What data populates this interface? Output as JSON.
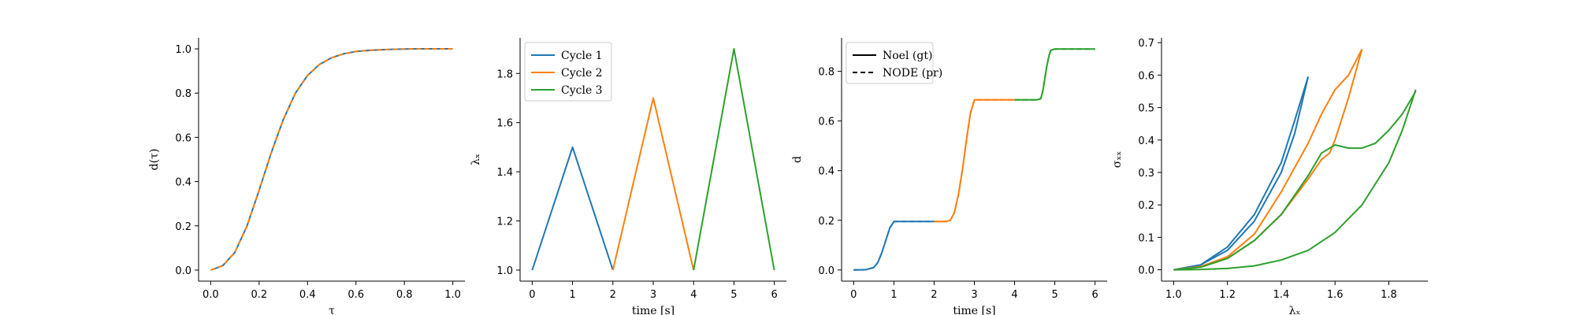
{
  "colors": {
    "blue": "#1f77b4",
    "orange": "#ff7f0e",
    "green": "#2ca02c",
    "black": "#000000"
  },
  "chart_data": [
    {
      "type": "line",
      "xlabel": "τ",
      "ylabel": "d(τ)",
      "xlim": [
        -0.05,
        1.05
      ],
      "ylim": [
        -0.05,
        1.05
      ],
      "xticks": [
        0.0,
        0.2,
        0.4,
        0.6,
        0.8,
        1.0
      ],
      "xtick_labels": [
        "0.0",
        "0.2",
        "0.4",
        "0.6",
        "0.8",
        "1.0"
      ],
      "yticks": [
        0.0,
        0.2,
        0.4,
        0.6,
        0.8,
        1.0
      ],
      "ytick_labels": [
        "0.0",
        "0.2",
        "0.4",
        "0.6",
        "0.8",
        "1.0"
      ],
      "grid": false,
      "series": [
        {
          "color": "blue",
          "dash": "solid",
          "x": [
            0.0,
            0.05,
            0.1,
            0.15,
            0.2,
            0.25,
            0.3,
            0.35,
            0.4,
            0.45,
            0.5,
            0.55,
            0.6,
            0.65,
            0.7,
            0.75,
            0.8,
            0.85,
            0.9,
            0.95,
            1.0
          ],
          "y": [
            0.0,
            0.02,
            0.08,
            0.2,
            0.36,
            0.53,
            0.68,
            0.8,
            0.88,
            0.93,
            0.96,
            0.978,
            0.988,
            0.993,
            0.996,
            0.998,
            0.999,
            1.0,
            1.0,
            1.0,
            1.0
          ]
        },
        {
          "color": "orange",
          "dash": "dashed",
          "x": [
            0.0,
            0.05,
            0.1,
            0.15,
            0.2,
            0.25,
            0.3,
            0.35,
            0.4,
            0.45,
            0.5,
            0.55,
            0.6,
            0.65,
            0.7,
            0.75,
            0.8,
            0.85,
            0.9,
            0.95,
            1.0
          ],
          "y": [
            0.0,
            0.02,
            0.08,
            0.2,
            0.36,
            0.53,
            0.68,
            0.8,
            0.88,
            0.93,
            0.96,
            0.978,
            0.988,
            0.993,
            0.996,
            0.998,
            0.999,
            1.0,
            1.0,
            1.0,
            1.0
          ]
        }
      ]
    },
    {
      "type": "line",
      "xlabel": "time [s]",
      "ylabel": "λₓ",
      "xlim": [
        -0.3,
        6.3
      ],
      "ylim": [
        0.955,
        1.945
      ],
      "xticks": [
        0,
        1,
        2,
        3,
        4,
        5,
        6
      ],
      "xtick_labels": [
        "0",
        "1",
        "2",
        "3",
        "4",
        "5",
        "6"
      ],
      "yticks": [
        1.0,
        1.2,
        1.4,
        1.6,
        1.8
      ],
      "ytick_labels": [
        "1.0",
        "1.2",
        "1.4",
        "1.6",
        "1.8"
      ],
      "grid": false,
      "legend": {
        "placement": "upper-left",
        "entries": [
          {
            "label": "Cycle 1",
            "color": "blue",
            "dash": "solid"
          },
          {
            "label": "Cycle 2",
            "color": "orange",
            "dash": "solid"
          },
          {
            "label": "Cycle 3",
            "color": "green",
            "dash": "solid"
          }
        ]
      },
      "series": [
        {
          "name": "Cycle 1",
          "color": "blue",
          "dash": "solid",
          "x": [
            0,
            1,
            2
          ],
          "y": [
            1.0,
            1.5,
            1.0
          ]
        },
        {
          "name": "Cycle 2",
          "color": "orange",
          "dash": "solid",
          "x": [
            2,
            3,
            4
          ],
          "y": [
            1.0,
            1.7,
            1.0
          ]
        },
        {
          "name": "Cycle 3",
          "color": "green",
          "dash": "solid",
          "x": [
            4,
            5,
            6
          ],
          "y": [
            1.0,
            1.9,
            1.0
          ]
        }
      ]
    },
    {
      "type": "line",
      "xlabel": "time [s]",
      "ylabel": "d",
      "xlim": [
        -0.3,
        6.3
      ],
      "ylim": [
        -0.045,
        0.935
      ],
      "xticks": [
        0,
        1,
        2,
        3,
        4,
        5,
        6
      ],
      "xtick_labels": [
        "0",
        "1",
        "2",
        "3",
        "4",
        "5",
        "6"
      ],
      "yticks": [
        0.0,
        0.2,
        0.4,
        0.6,
        0.8
      ],
      "ytick_labels": [
        "0.0",
        "0.2",
        "0.4",
        "0.6",
        "0.8"
      ],
      "grid": false,
      "legend": {
        "placement": "upper-left",
        "entries": [
          {
            "label": "Noel (gt)",
            "color": "black",
            "dash": "solid"
          },
          {
            "label": "NODE (pr)",
            "color": "black",
            "dash": "dashed"
          }
        ]
      },
      "series": [
        {
          "color": "blue",
          "dash": "solid",
          "x": [
            0,
            0.3,
            0.5,
            0.6,
            0.7,
            0.8,
            0.9,
            1.0,
            1.5,
            2.0
          ],
          "y": [
            0.0,
            0.001,
            0.01,
            0.03,
            0.07,
            0.12,
            0.17,
            0.195,
            0.195,
            0.195
          ]
        },
        {
          "color": "blue",
          "dash": "dashed",
          "x": [
            0,
            0.3,
            0.5,
            0.6,
            0.7,
            0.8,
            0.9,
            1.0,
            1.5,
            2.0
          ],
          "y": [
            0.0,
            0.001,
            0.01,
            0.03,
            0.07,
            0.12,
            0.17,
            0.195,
            0.195,
            0.195
          ]
        },
        {
          "color": "orange",
          "dash": "solid",
          "x": [
            2.0,
            2.3,
            2.4,
            2.5,
            2.6,
            2.7,
            2.8,
            2.9,
            3.0,
            3.5,
            4.0
          ],
          "y": [
            0.195,
            0.195,
            0.2,
            0.23,
            0.3,
            0.4,
            0.52,
            0.63,
            0.685,
            0.685,
            0.685
          ]
        },
        {
          "color": "orange",
          "dash": "dashed",
          "x": [
            2.0,
            2.3,
            2.4,
            2.5,
            2.6,
            2.7,
            2.8,
            2.9,
            3.0,
            3.5,
            4.0
          ],
          "y": [
            0.195,
            0.195,
            0.2,
            0.23,
            0.3,
            0.4,
            0.52,
            0.63,
            0.685,
            0.685,
            0.685
          ]
        },
        {
          "color": "green",
          "dash": "solid",
          "x": [
            4.0,
            4.55,
            4.65,
            4.7,
            4.75,
            4.8,
            4.85,
            4.9,
            5.0,
            5.5,
            6.0
          ],
          "y": [
            0.685,
            0.685,
            0.69,
            0.72,
            0.77,
            0.82,
            0.86,
            0.885,
            0.89,
            0.89,
            0.89
          ]
        },
        {
          "color": "green",
          "dash": "dashed",
          "x": [
            4.0,
            4.55,
            4.65,
            4.7,
            4.75,
            4.8,
            4.85,
            4.9,
            5.0,
            5.5,
            6.0
          ],
          "y": [
            0.685,
            0.685,
            0.69,
            0.72,
            0.77,
            0.82,
            0.86,
            0.885,
            0.89,
            0.89,
            0.89
          ]
        }
      ]
    },
    {
      "type": "line",
      "xlabel": "λₓ",
      "ylabel": "σₓₓ",
      "xlim": [
        0.955,
        1.945
      ],
      "ylim": [
        -0.035,
        0.715
      ],
      "xticks": [
        1.0,
        1.2,
        1.4,
        1.6,
        1.8
      ],
      "xtick_labels": [
        "1.0",
        "1.2",
        "1.4",
        "1.6",
        "1.8"
      ],
      "yticks": [
        0.0,
        0.1,
        0.2,
        0.3,
        0.4,
        0.5,
        0.6,
        0.7
      ],
      "ytick_labels": [
        "0.0",
        "0.1",
        "0.2",
        "0.3",
        "0.4",
        "0.5",
        "0.6",
        "0.7"
      ],
      "grid": false,
      "series": [
        {
          "color": "blue",
          "dash": "solid",
          "x": [
            1.0,
            1.1,
            1.2,
            1.3,
            1.4,
            1.45,
            1.5
          ],
          "y": [
            0.0,
            0.015,
            0.06,
            0.15,
            0.3,
            0.42,
            0.595
          ]
        },
        {
          "color": "blue",
          "dash": "solid",
          "x": [
            1.5,
            1.45,
            1.4,
            1.3,
            1.2,
            1.1,
            1.0
          ],
          "y": [
            0.595,
            0.46,
            0.33,
            0.17,
            0.07,
            0.015,
            0.0
          ]
        },
        {
          "color": "orange",
          "dash": "solid",
          "x": [
            1.0,
            1.1,
            1.2,
            1.3,
            1.4,
            1.5,
            1.55,
            1.6,
            1.65,
            1.7
          ],
          "y": [
            0.0,
            0.01,
            0.04,
            0.11,
            0.24,
            0.39,
            0.48,
            0.555,
            0.6,
            0.68
          ]
        },
        {
          "color": "orange",
          "dash": "solid",
          "x": [
            1.7,
            1.65,
            1.6,
            1.58,
            1.55,
            1.5,
            1.4,
            1.3,
            1.2,
            1.1,
            1.0
          ],
          "y": [
            0.68,
            0.53,
            0.4,
            0.36,
            0.34,
            0.28,
            0.17,
            0.09,
            0.035,
            0.008,
            0.0
          ]
        },
        {
          "color": "green",
          "dash": "solid",
          "x": [
            1.0,
            1.1,
            1.2,
            1.3,
            1.4,
            1.5,
            1.55,
            1.6,
            1.65,
            1.7,
            1.75,
            1.8,
            1.85,
            1.9
          ],
          "y": [
            0.0,
            0.008,
            0.035,
            0.09,
            0.17,
            0.29,
            0.36,
            0.385,
            0.375,
            0.375,
            0.39,
            0.43,
            0.48,
            0.55
          ]
        },
        {
          "color": "green",
          "dash": "solid",
          "x": [
            1.9,
            1.85,
            1.8,
            1.7,
            1.6,
            1.5,
            1.4,
            1.3,
            1.2,
            1.1,
            1.0
          ],
          "y": [
            0.555,
            0.43,
            0.33,
            0.2,
            0.115,
            0.06,
            0.03,
            0.012,
            0.004,
            0.001,
            0.0
          ]
        }
      ]
    }
  ]
}
